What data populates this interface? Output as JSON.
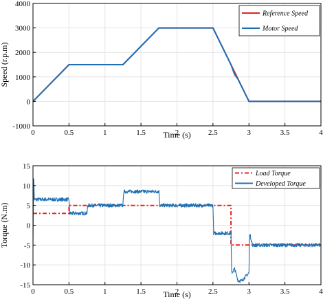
{
  "chart_data": [
    {
      "type": "line",
      "title": "",
      "xlabel": "Time (s)",
      "ylabel": "Speed (r.p.m)",
      "xlim": [
        0,
        4
      ],
      "ylim": [
        -1000,
        4000
      ],
      "xticks": [
        0,
        0.5,
        1,
        1.5,
        2,
        2.5,
        3,
        3.5,
        4
      ],
      "xtick_labels": [
        "0",
        "0.5",
        "1",
        "1.5",
        "2",
        "2.5",
        "3",
        "3.5",
        "4"
      ],
      "yticks": [
        -1000,
        0,
        1000,
        2000,
        3000,
        4000
      ],
      "ytick_labels": [
        "-1000",
        "0",
        "1000",
        "2000",
        "3000",
        "4000"
      ],
      "grid": true,
      "legend_position": "top-right",
      "series": [
        {
          "name": "Reference Speed",
          "color": "#e8211f",
          "style": "solid",
          "x": [
            0,
            0.5,
            1.25,
            1.75,
            2.5,
            3.0,
            4.0
          ],
          "y": [
            0,
            1500,
            1500,
            3000,
            3000,
            0,
            0
          ]
        },
        {
          "name": "Motor Speed",
          "color": "#1f6fb2",
          "style": "solid",
          "x": [
            0,
            0.5,
            1.25,
            1.75,
            2.5,
            2.75,
            2.8,
            2.85,
            3.0,
            4.0
          ],
          "y": [
            0,
            1500,
            1500,
            3000,
            3000,
            1500,
            1100,
            900,
            0,
            0
          ]
        }
      ]
    },
    {
      "type": "line",
      "title": "",
      "xlabel": "Time (s)",
      "ylabel": "Torque (N.m)",
      "xlim": [
        0,
        4
      ],
      "ylim": [
        -15,
        15
      ],
      "xticks": [
        0,
        0.5,
        1,
        1.5,
        2,
        2.5,
        3,
        3.5,
        4
      ],
      "xtick_labels": [
        "0",
        "0.5",
        "1",
        "1.5",
        "2",
        "2.5",
        "3",
        "3.5",
        "4"
      ],
      "yticks": [
        -15,
        -10,
        -5,
        0,
        5,
        10,
        15
      ],
      "ytick_labels": [
        "-15",
        "-10",
        "-5",
        "0",
        "5",
        "10",
        "15"
      ],
      "grid": true,
      "legend_position": "top-right",
      "series": [
        {
          "name": "Load Torque",
          "color": "#e8211f",
          "style": "dash-dot",
          "x": [
            0,
            0.5,
            0.5,
            2.75,
            2.75,
            4.0
          ],
          "y": [
            3,
            3,
            5,
            5,
            -5,
            -5
          ]
        },
        {
          "name": "Developed Torque",
          "color": "#1f6fb2",
          "style": "solid",
          "x": [
            0,
            0.01,
            0.02,
            0.05,
            0.5,
            0.51,
            0.75,
            0.76,
            1.25,
            1.26,
            1.75,
            1.76,
            2.5,
            2.51,
            2.75,
            2.76,
            2.8,
            2.85,
            2.9,
            2.95,
            3.0,
            3.01,
            3.05,
            4.0
          ],
          "y": [
            -5,
            12,
            6.5,
            6.5,
            6.5,
            3,
            3,
            5,
            5,
            8.5,
            8.5,
            5,
            5,
            -2,
            -2,
            -12,
            -11,
            -14,
            -14,
            -13,
            -12,
            -2,
            -5,
            -5
          ]
        }
      ]
    }
  ]
}
